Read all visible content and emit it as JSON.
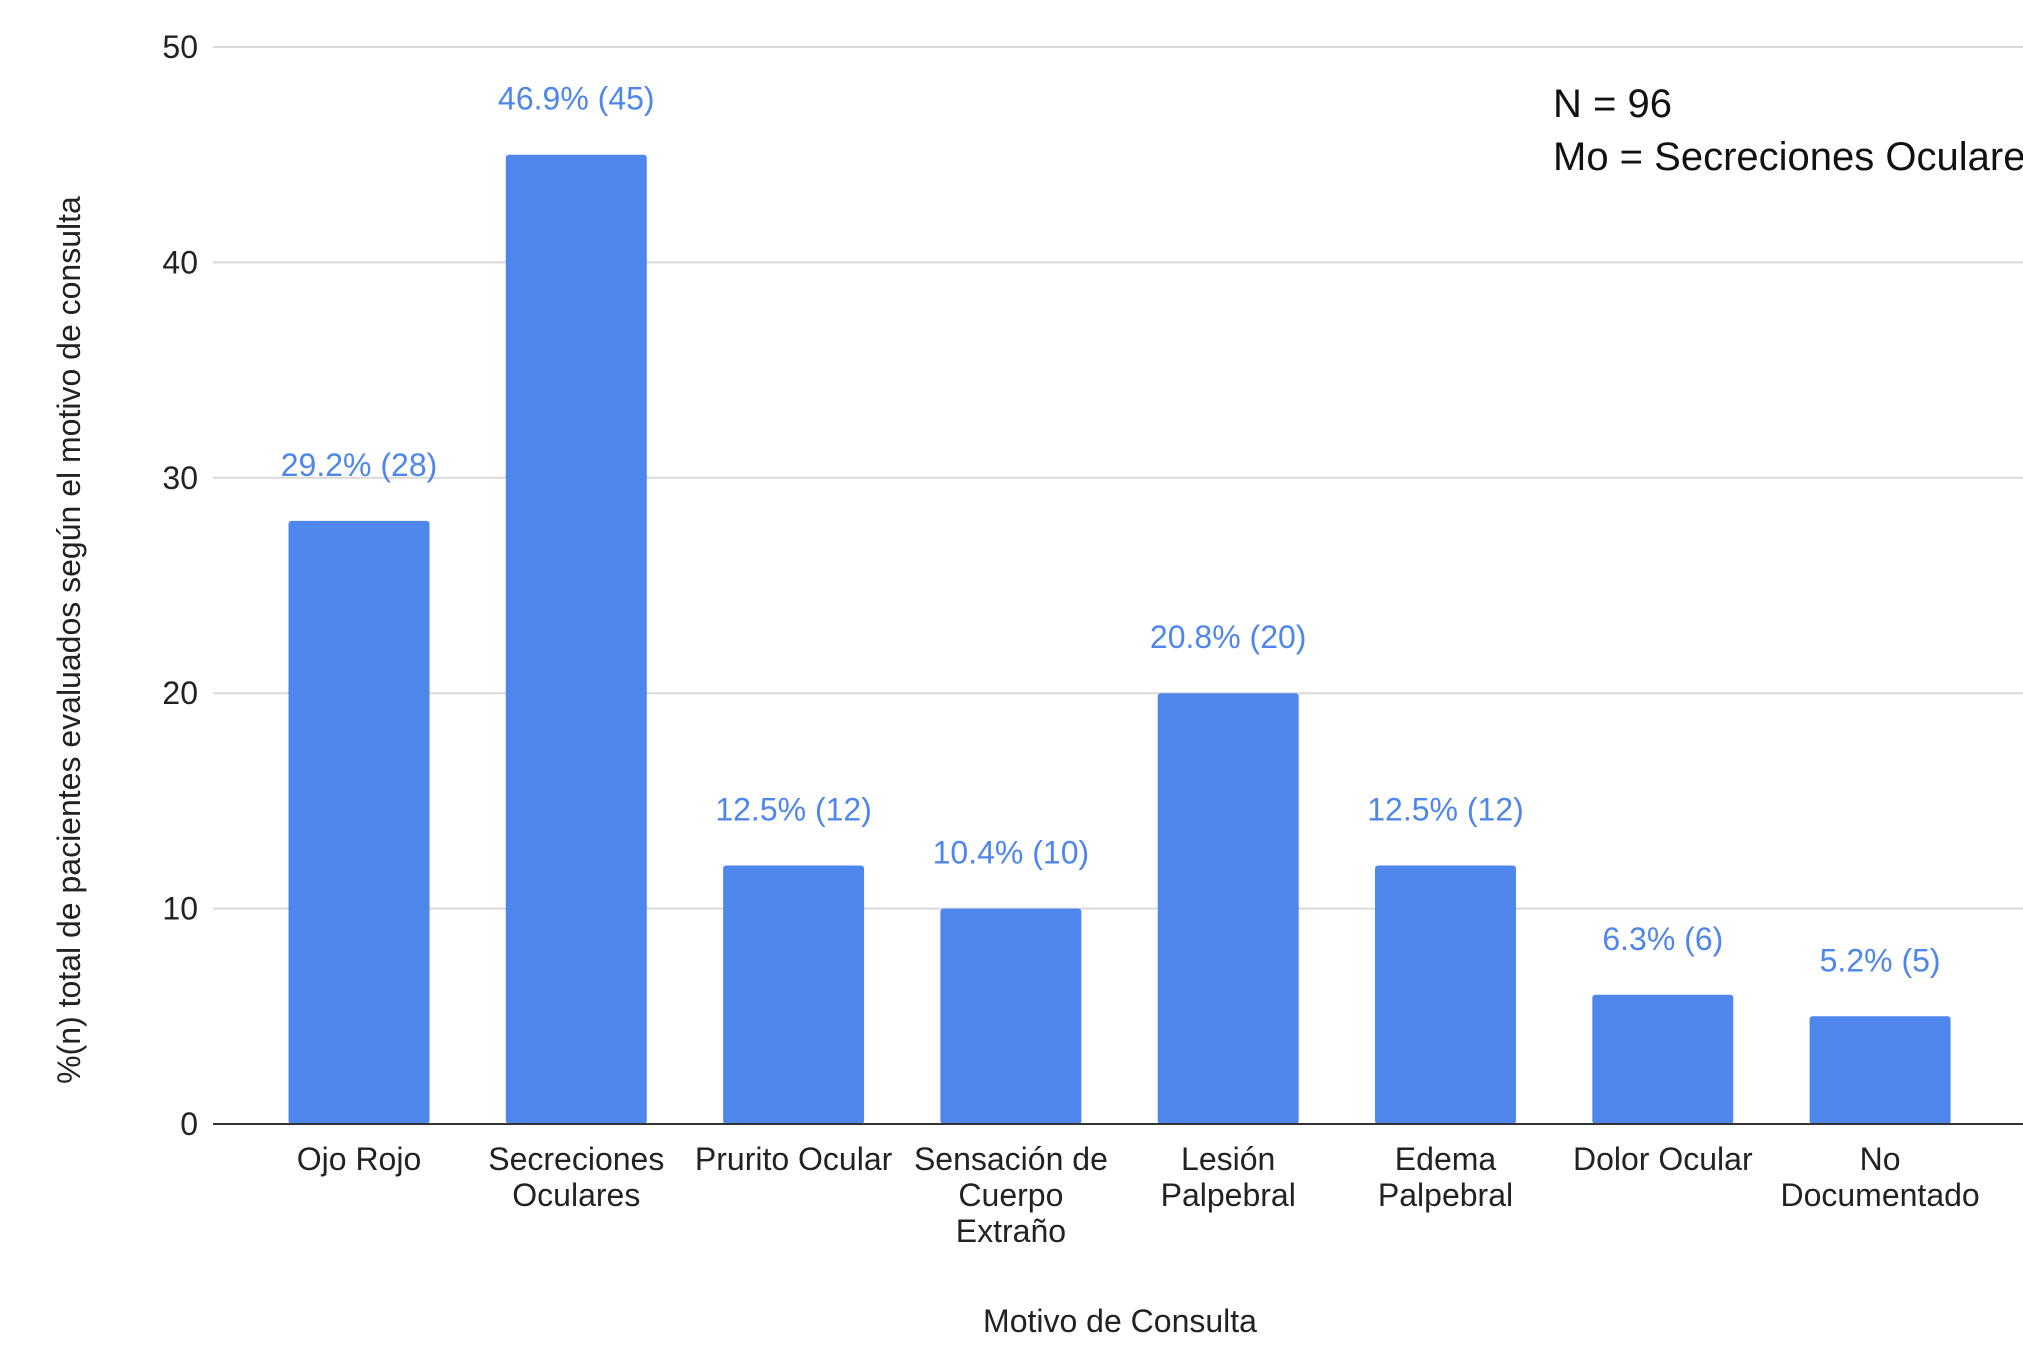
{
  "chart_data": {
    "type": "bar",
    "categories": [
      [
        "Ojo Rojo"
      ],
      [
        "Secreciones",
        "Oculares"
      ],
      [
        "Prurito Ocular"
      ],
      [
        "Sensación de",
        "Cuerpo",
        "Extraño"
      ],
      [
        "Lesión",
        "Palpebral"
      ],
      [
        "Edema",
        "Palpebral"
      ],
      [
        "Dolor Ocular"
      ],
      [
        "No",
        "Documentado"
      ]
    ],
    "values": [
      28,
      45,
      12,
      10,
      20,
      12,
      6,
      5
    ],
    "data_labels": [
      "29.2% (28)",
      "46.9% (45)",
      "12.5% (12)",
      "10.4% (10)",
      "20.8% (20)",
      "12.5% (12)",
      "6.3% (6)",
      "5.2% (5)"
    ],
    "xlabel": "Motivo de Consulta",
    "ylabel": "%(n) total de pacientes evaluados según el motivo de consulta",
    "ylim": [
      0,
      50
    ],
    "yticks": [
      0,
      10,
      20,
      30,
      40,
      50
    ],
    "grid": true,
    "annotation": [
      "N = 96",
      "Mo = Secreciones Oculares"
    ],
    "colors": {
      "bar": "#4f86ec",
      "data_label": "#4f86ec",
      "grid": "#d9d9d9",
      "axis": "#333333"
    }
  }
}
